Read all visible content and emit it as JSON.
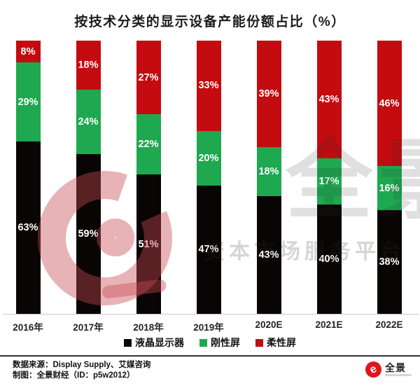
{
  "title": "按技术分类的显示设备产能份额占比（%）",
  "chart_data": {
    "type": "bar",
    "stacked": true,
    "percent_stacked": true,
    "unit": "%",
    "title": "按技术分类的显示设备产能份额占比（%）",
    "categories": [
      "2016年",
      "2017年",
      "2018年",
      "2019年",
      "2020E",
      "2021E",
      "2022E"
    ],
    "series": [
      {
        "name": "液晶显示器",
        "color": "#0a0505",
        "values": [
          63,
          59,
          51,
          47,
          43,
          40,
          38
        ]
      },
      {
        "name": "刚性屏",
        "color": "#1ea850",
        "values": [
          29,
          24,
          22,
          20,
          18,
          17,
          16
        ]
      },
      {
        "name": "柔性屏",
        "color": "#c40b10",
        "values": [
          8,
          18,
          27,
          33,
          39,
          43,
          46
        ]
      }
    ],
    "ylim": [
      0,
      100
    ],
    "grid": false,
    "legend_position": "bottom",
    "value_labels": "inside-center-white"
  },
  "watermark": {
    "big_text": "全景",
    "row_text": "资本市场服务平台",
    "logo_color": "rgba(201,74,82,0.42)"
  },
  "footer": {
    "source_line": "数据来源：Display Supply、艾媒咨询",
    "credit_line": "制图：全景财经（ID：p5w2012）",
    "logo_text": "全景",
    "logo_glyph": "e"
  }
}
